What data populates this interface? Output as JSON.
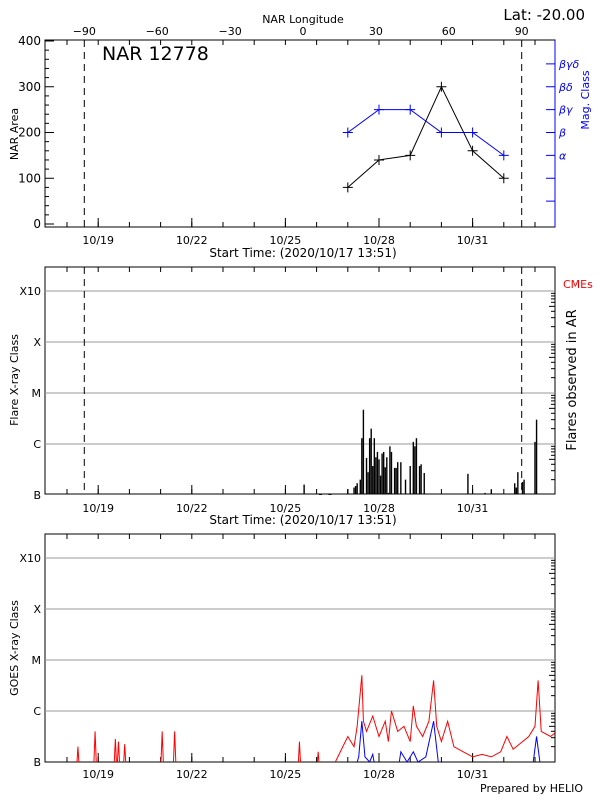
{
  "chart_data": [
    {
      "type": "line",
      "title": "NAR 12778",
      "top_right_label": "Lat: -20.00",
      "top_axis_label": "NAR Longitude",
      "top_ticks": [
        -90,
        -60,
        -30,
        0,
        30,
        60,
        90
      ],
      "xlabel": "Start Time: (2020/10/17 13:51)",
      "x_ticks": [
        "10/19",
        "10/22",
        "10/25",
        "10/28",
        "10/31"
      ],
      "x_tick_days_oct": [
        19,
        22,
        25,
        28,
        31
      ],
      "ylabel": "NAR Area",
      "ylim": [
        0,
        400
      ],
      "y_ticks": [
        0,
        100,
        200,
        300,
        400
      ],
      "y2label": "Mag. Class",
      "y2_ticks": [
        "α",
        "β",
        "βγ",
        "βδ",
        "βγδ"
      ],
      "limb_lines_longitude": [
        -90,
        90
      ],
      "series": [
        {
          "name": "NAR Area",
          "color": "#000000",
          "x_day_oct": [
            27,
            28,
            29,
            30,
            31,
            32
          ],
          "values": [
            80,
            140,
            150,
            300,
            160,
            100
          ]
        },
        {
          "name": "Mag. Class",
          "color": "#0000ff",
          "x_day_oct": [
            27,
            28,
            29,
            30,
            31,
            32
          ],
          "values": [
            "β",
            "βγ",
            "βγ",
            "β",
            "β",
            "α"
          ]
        }
      ]
    },
    {
      "type": "bar",
      "xlabel": "Start Time: (2020/10/17 13:51)",
      "ylabel": "Flare X-ray Class",
      "y2label": "Flares observed in AR",
      "legend": {
        "label": "CMEs",
        "color": "#ff0000"
      },
      "y_ticks": [
        "B",
        "C",
        "M",
        "X",
        "X10"
      ],
      "flares": [
        [
          25.6,
          "B1.6"
        ],
        [
          26.1,
          "B1.0"
        ],
        [
          26.15,
          "B1.0"
        ],
        [
          26.4,
          "B1.0"
        ],
        [
          26.45,
          "B1.0"
        ],
        [
          27.0,
          "B1.3"
        ],
        [
          27.2,
          "B1.4"
        ],
        [
          27.25,
          "B1.5"
        ],
        [
          27.3,
          "B1.7"
        ],
        [
          27.4,
          "B2.0"
        ],
        [
          27.45,
          "C1.3"
        ],
        [
          27.5,
          "C4.7"
        ],
        [
          27.6,
          "B5.3"
        ],
        [
          27.65,
          "B2.8"
        ],
        [
          27.7,
          "C1.3"
        ],
        [
          27.75,
          "C2.0"
        ],
        [
          27.8,
          "B3.7"
        ],
        [
          27.85,
          "C1.3"
        ],
        [
          27.9,
          "B5.5"
        ],
        [
          27.95,
          "B7.0"
        ],
        [
          28.0,
          "B5.0"
        ],
        [
          28.05,
          "B2.4"
        ],
        [
          28.1,
          "B6.5"
        ],
        [
          28.15,
          "B7.0"
        ],
        [
          28.2,
          "B3.5"
        ],
        [
          28.25,
          "B5.5"
        ],
        [
          28.3,
          "B1.1"
        ],
        [
          28.35,
          "B9.0"
        ],
        [
          28.4,
          "B7.0"
        ],
        [
          28.5,
          "B3.4"
        ],
        [
          28.55,
          "B3.4"
        ],
        [
          28.6,
          "B4.4"
        ],
        [
          28.7,
          "B4.4"
        ],
        [
          28.85,
          "B2.0"
        ],
        [
          29.0,
          "B3.7"
        ],
        [
          29.1,
          "C1.1"
        ],
        [
          29.15,
          "B9.0"
        ],
        [
          29.2,
          "C1.3"
        ],
        [
          29.3,
          "B3.7"
        ],
        [
          29.35,
          "B4.0"
        ],
        [
          29.45,
          "B2.7"
        ],
        [
          30.85,
          "B2.6"
        ],
        [
          31.4,
          "B1.1"
        ],
        [
          31.6,
          "B1.3"
        ],
        [
          32.35,
          "B1.7"
        ],
        [
          32.4,
          "B1.4"
        ],
        [
          32.45,
          "B2.8"
        ],
        [
          32.6,
          "B1.8"
        ],
        [
          32.65,
          "B2.0"
        ],
        [
          33.0,
          "C1.1"
        ],
        [
          33.05,
          "C3.0"
        ]
      ]
    },
    {
      "type": "line",
      "ylabel": "GOES X-ray Class",
      "y_ticks": [
        "B",
        "C",
        "M",
        "X",
        "X10"
      ],
      "footer": "Prepared by HELIO",
      "series": [
        {
          "color": "#ff0000",
          "points": [
            [
              17.6,
              -7.2
            ],
            [
              18.3,
              -7.2
            ],
            [
              18.35,
              -6.7
            ],
            [
              18.4,
              -7.2
            ],
            [
              18.85,
              -7.2
            ],
            [
              18.9,
              -6.4
            ],
            [
              18.95,
              -7.2
            ],
            [
              19.5,
              -7.2
            ],
            [
              19.55,
              -6.55
            ],
            [
              19.6,
              -7.2
            ],
            [
              19.65,
              -6.6
            ],
            [
              19.7,
              -7.2
            ],
            [
              19.8,
              -7.2
            ],
            [
              19.85,
              -6.65
            ],
            [
              19.9,
              -7.2
            ],
            [
              21.0,
              -7.2
            ],
            [
              21.05,
              -6.4
            ],
            [
              21.1,
              -7.2
            ],
            [
              21.4,
              -7.2
            ],
            [
              21.45,
              -6.4
            ],
            [
              21.5,
              -7.2
            ],
            [
              25.4,
              -7.2
            ],
            [
              25.45,
              -6.6
            ],
            [
              25.5,
              -7.2
            ],
            [
              26.0,
              -7.2
            ],
            [
              26.05,
              -6.8
            ],
            [
              26.1,
              -7.2
            ],
            [
              26.6,
              -7.0
            ],
            [
              26.8,
              -6.75
            ],
            [
              27.0,
              -6.5
            ],
            [
              27.2,
              -6.7
            ],
            [
              27.3,
              -6.3
            ],
            [
              27.45,
              -5.3
            ],
            [
              27.5,
              -6.2
            ],
            [
              27.6,
              -6.4
            ],
            [
              27.8,
              -6.1
            ],
            [
              28.0,
              -6.5
            ],
            [
              28.2,
              -6.2
            ],
            [
              28.3,
              -6.6
            ],
            [
              28.4,
              -6.0
            ],
            [
              28.6,
              -6.4
            ],
            [
              28.8,
              -6.3
            ],
            [
              29.0,
              -6.6
            ],
            [
              29.1,
              -5.9
            ],
            [
              29.2,
              -6.3
            ],
            [
              29.4,
              -6.5
            ],
            [
              29.6,
              -6.2
            ],
            [
              29.75,
              -5.4
            ],
            [
              29.85,
              -6.3
            ],
            [
              30.0,
              -6.6
            ],
            [
              30.2,
              -6.2
            ],
            [
              30.4,
              -6.7
            ],
            [
              30.7,
              -6.8
            ],
            [
              31.0,
              -6.9
            ],
            [
              31.3,
              -6.85
            ],
            [
              31.6,
              -6.9
            ],
            [
              31.9,
              -6.8
            ],
            [
              32.1,
              -6.5
            ],
            [
              32.3,
              -6.75
            ],
            [
              32.6,
              -6.6
            ],
            [
              32.8,
              -6.5
            ],
            [
              33.0,
              -6.3
            ],
            [
              33.1,
              -5.4
            ],
            [
              33.2,
              -6.4
            ],
            [
              33.5,
              -6.5
            ],
            [
              33.8,
              -6.35
            ],
            [
              34.0,
              -6.4
            ],
            [
              34.2,
              -6.3
            ]
          ]
        },
        {
          "color": "#0000ff",
          "points": [
            [
              27.2,
              -7.2
            ],
            [
              27.35,
              -6.9
            ],
            [
              27.45,
              -6.2
            ],
            [
              27.55,
              -6.9
            ],
            [
              27.7,
              -7.0
            ],
            [
              27.8,
              -6.85
            ],
            [
              27.9,
              -7.2
            ],
            [
              28.6,
              -7.2
            ],
            [
              28.7,
              -6.8
            ],
            [
              28.9,
              -7.0
            ],
            [
              29.1,
              -6.8
            ],
            [
              29.25,
              -7.0
            ],
            [
              29.5,
              -6.9
            ],
            [
              29.75,
              -6.2
            ],
            [
              29.9,
              -7.0
            ],
            [
              30.1,
              -7.2
            ],
            [
              32.9,
              -7.2
            ],
            [
              33.05,
              -6.5
            ],
            [
              33.2,
              -7.2
            ]
          ]
        }
      ]
    }
  ]
}
